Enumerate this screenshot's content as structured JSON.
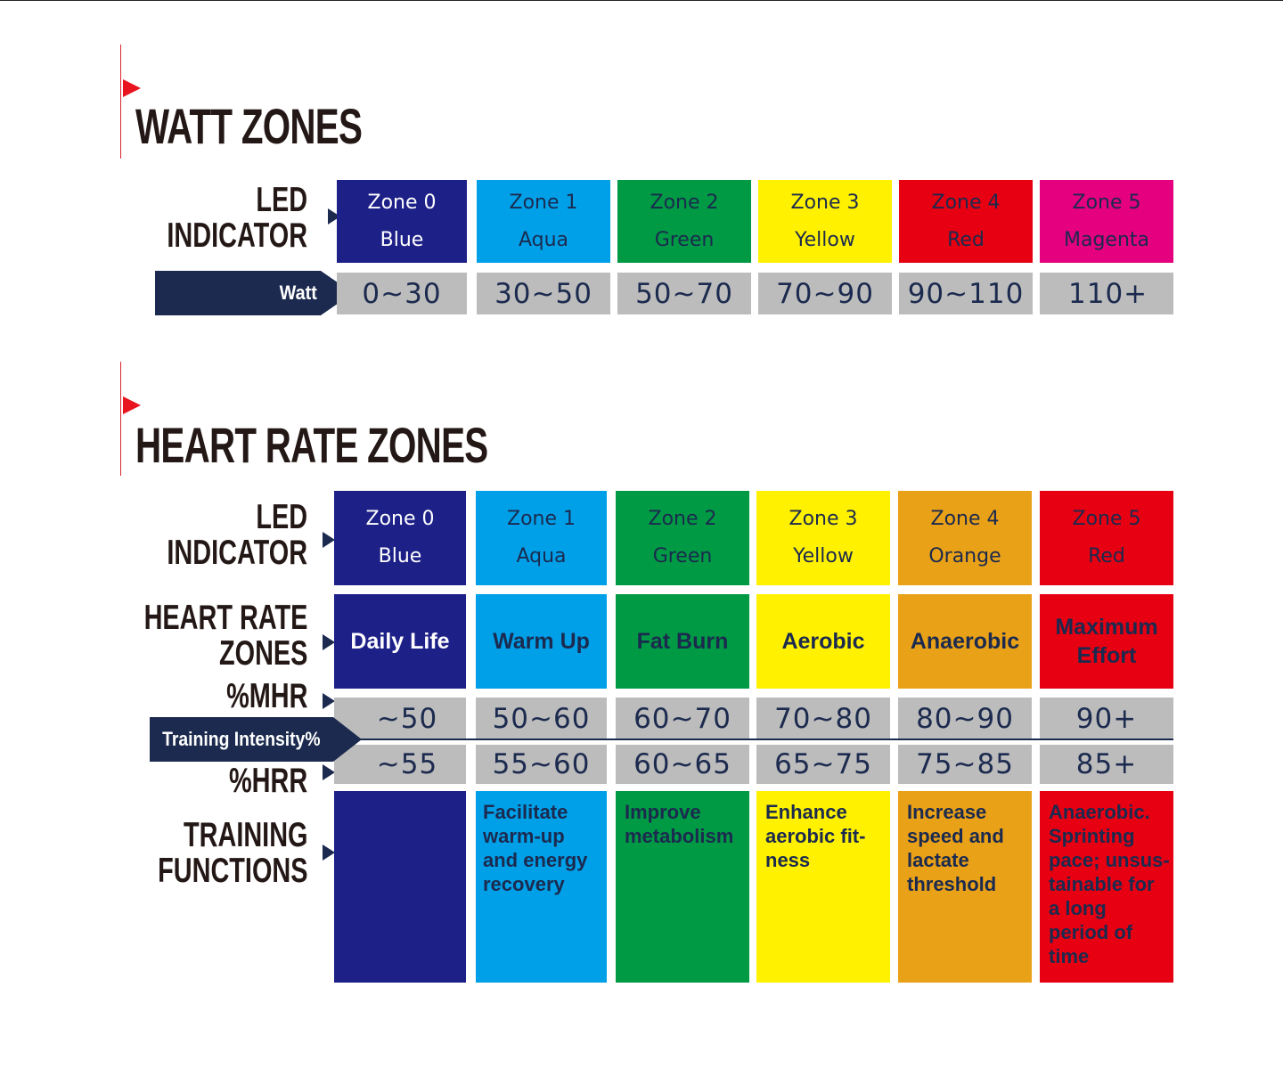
{
  "watt": {
    "title": "WATT ZONES",
    "led_label": [
      "LED",
      "INDICATOR"
    ],
    "banner": "Watt",
    "zones": [
      {
        "zone": "Zone 0",
        "color_name": "Blue",
        "color": "#1d2087",
        "range": "0~30"
      },
      {
        "zone": "Zone 1",
        "color_name": "Aqua",
        "color": "#00a0e9",
        "range": "30~50"
      },
      {
        "zone": "Zone 2",
        "color_name": "Green",
        "color": "#009944",
        "range": "50~70"
      },
      {
        "zone": "Zone 3",
        "color_name": "Yellow",
        "color": "#fff100",
        "range": "70~90"
      },
      {
        "zone": "Zone 4",
        "color_name": "Red",
        "color": "#e60012",
        "range": "90~110"
      },
      {
        "zone": "Zone 5",
        "color_name": "Magenta",
        "color": "#e4007f",
        "range": "110+"
      }
    ]
  },
  "hr": {
    "title": "HEART RATE ZONES",
    "led_label": [
      "LED",
      "INDICATOR"
    ],
    "zones_label": [
      "HEART RATE",
      "ZONES"
    ],
    "mhr_label": "%MHR",
    "banner": "Training Intensity%",
    "hrr_label": "%HRR",
    "func_label": [
      "TRAINING",
      "FUNCTIONS"
    ],
    "zones": [
      {
        "zone": "Zone 0",
        "color_name": "Blue",
        "color": "#1d2087",
        "name": "Daily Life",
        "mhr": "~50",
        "hrr": "~55",
        "function": ""
      },
      {
        "zone": "Zone 1",
        "color_name": "Aqua",
        "color": "#00a0e9",
        "name": "Warm Up",
        "mhr": "50~60",
        "hrr": "55~60",
        "function": "Facilitate warm-up and energy recovery"
      },
      {
        "zone": "Zone 2",
        "color_name": "Green",
        "color": "#009944",
        "name": "Fat Burn",
        "mhr": "60~70",
        "hrr": "60~65",
        "function": "Improve metabolism"
      },
      {
        "zone": "Zone 3",
        "color_name": "Yellow",
        "color": "#fff100",
        "name": "Aerobic",
        "mhr": "70~80",
        "hrr": "65~75",
        "function": "Enhance aerobic fit-ness"
      },
      {
        "zone": "Zone 4",
        "color_name": "Orange",
        "color": "#e9a118",
        "name": "Anaerobic",
        "mhr": "80~90",
        "hrr": "75~85",
        "function": "Increase speed and lactate threshold"
      },
      {
        "zone": "Zone 5",
        "color_name": "Red",
        "color": "#e60012",
        "name": "Maximum Effort",
        "mhr": "90+",
        "hrr": "85+",
        "function": "Anaerobic. Sprinting pace; unsus-tainable for a long period of time"
      }
    ]
  }
}
